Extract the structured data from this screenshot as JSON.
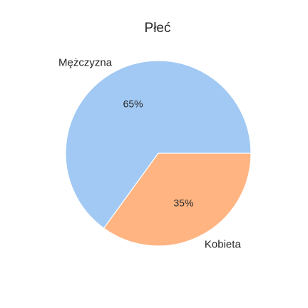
{
  "chart_data": {
    "type": "pie",
    "title": "Płeć",
    "categories": [
      "Mężczyzna",
      "Kobieta"
    ],
    "values": [
      65,
      35
    ],
    "value_labels": [
      "65%",
      "35%"
    ],
    "colors": [
      "#a1c9f4",
      "#ffb482"
    ],
    "start_angle_deg": 0,
    "direction": "counterclockwise"
  }
}
